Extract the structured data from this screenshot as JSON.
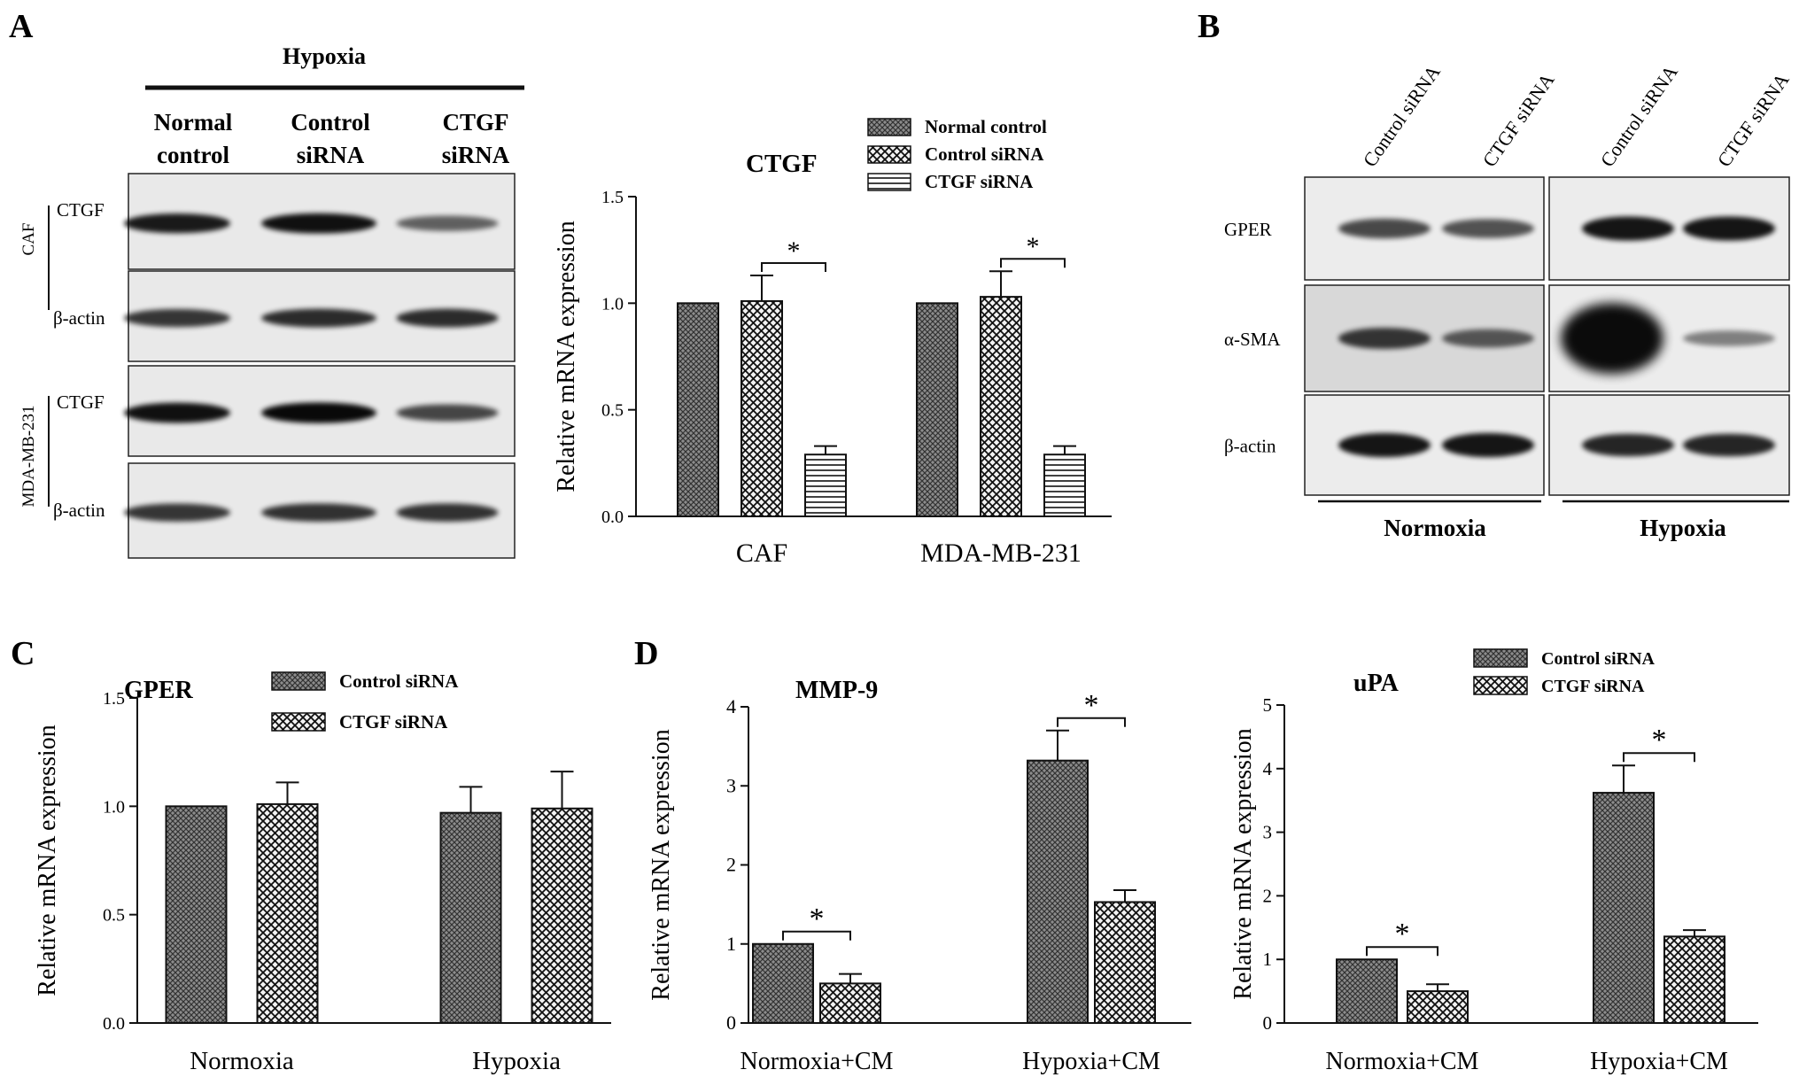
{
  "panels": {
    "A": {
      "letter": "A",
      "condition_label": "Hypoxia",
      "lane_labels": [
        {
          "line1": "Normal",
          "line2": "control"
        },
        {
          "line1": "Control",
          "line2": "siRNA"
        },
        {
          "line1": "CTGF",
          "line2": "siRNA"
        }
      ],
      "cell_labels": [
        "CAF",
        "MDA-MB-231"
      ],
      "band_labels": [
        "CTGF",
        "β-actin",
        "CTGF",
        "β-actin"
      ],
      "blot_intensity": [
        [
          0.85,
          0.9,
          0.45
        ],
        [
          0.7,
          0.75,
          0.75
        ],
        [
          0.9,
          0.95,
          0.6
        ],
        [
          0.7,
          0.72,
          0.72
        ]
      ]
    },
    "B": {
      "letter": "B",
      "lane_labels": [
        "Control siRNA",
        "CTGF siRNA",
        "Control siRNA",
        "CTGF siRNA"
      ],
      "band_labels": [
        "GPER",
        "α-SMA",
        "β-actin"
      ],
      "group_labels": [
        "Normoxia",
        "Hypoxia"
      ],
      "blot_intensity": [
        [
          0.65,
          0.6,
          0.95,
          0.95
        ],
        [
          0.75,
          0.55,
          1.0,
          0.35
        ],
        [
          0.95,
          0.95,
          0.85,
          0.85
        ]
      ]
    },
    "C": {
      "letter": "C"
    },
    "D": {
      "letter": "D"
    }
  },
  "chart_data": [
    {
      "type": "bar",
      "title": "CTGF",
      "ylabel": "Relative mRNA expression",
      "categories": [
        "CAF",
        "MDA-MB-231"
      ],
      "ylim": [
        0,
        1.5
      ],
      "yticks": [
        "0.0",
        "0.5",
        "1.0",
        "1.5"
      ],
      "series": [
        {
          "name": "Normal control",
          "values": [
            1.0,
            1.0
          ],
          "errors": [
            0,
            0
          ],
          "pattern": "dense"
        },
        {
          "name": "Control siRNA",
          "values": [
            1.01,
            1.03
          ],
          "errors": [
            0.12,
            0.12
          ],
          "pattern": "check"
        },
        {
          "name": "CTGF siRNA",
          "values": [
            0.29,
            0.29
          ],
          "errors": [
            0.04,
            0.04
          ],
          "pattern": "hlines"
        }
      ],
      "annotations": [
        {
          "text": "*",
          "category": 0,
          "from_series": 1,
          "to_series": 2
        },
        {
          "text": "*",
          "category": 1,
          "from_series": 1,
          "to_series": 2
        }
      ]
    },
    {
      "type": "bar",
      "title": "GPER",
      "ylabel": "Relative mRNA expression",
      "categories": [
        "Normoxia",
        "Hypoxia"
      ],
      "ylim": [
        0,
        1.5
      ],
      "yticks": [
        "0.0",
        "0.5",
        "1.0",
        "1.5"
      ],
      "series": [
        {
          "name": "Control siRNA",
          "values": [
            1.0,
            0.97
          ],
          "errors": [
            0,
            0.12
          ],
          "pattern": "dense"
        },
        {
          "name": "CTGF siRNA",
          "values": [
            1.01,
            0.99
          ],
          "errors": [
            0.1,
            0.17
          ],
          "pattern": "check"
        }
      ],
      "annotations": []
    },
    {
      "type": "bar",
      "title": "MMP-9",
      "ylabel": "Relative mRNA expression",
      "categories": [
        "Normoxia+CM",
        "Hypoxia+CM"
      ],
      "ylim": [
        0,
        4
      ],
      "yticks": [
        "0",
        "1",
        "2",
        "3",
        "4"
      ],
      "series": [
        {
          "name": "Control siRNA",
          "values": [
            1.0,
            3.32
          ],
          "errors": [
            0,
            0.38
          ],
          "pattern": "dense"
        },
        {
          "name": "CTGF siRNA",
          "values": [
            0.5,
            1.53
          ],
          "errors": [
            0.12,
            0.15
          ],
          "pattern": "check"
        }
      ],
      "annotations": [
        {
          "text": "*",
          "category": 0,
          "from_series": 0,
          "to_series": 1
        },
        {
          "text": "*",
          "category": 1,
          "from_series": 0,
          "to_series": 1
        }
      ]
    },
    {
      "type": "bar",
      "title": "uPA",
      "ylabel": "Relative mRNA expression",
      "categories": [
        "Normoxia+CM",
        "Hypoxia+CM"
      ],
      "ylim": [
        0,
        5
      ],
      "yticks": [
        "0",
        "1",
        "2",
        "3",
        "4",
        "5"
      ],
      "series": [
        {
          "name": "Control siRNA",
          "values": [
            1.0,
            3.62
          ],
          "errors": [
            0,
            0.43
          ],
          "pattern": "dense"
        },
        {
          "name": "CTGF siRNA",
          "values": [
            0.5,
            1.36
          ],
          "errors": [
            0.11,
            0.1
          ],
          "pattern": "check"
        }
      ],
      "annotations": [
        {
          "text": "*",
          "category": 0,
          "from_series": 0,
          "to_series": 1
        },
        {
          "text": "*",
          "category": 1,
          "from_series": 0,
          "to_series": 1
        }
      ]
    }
  ]
}
